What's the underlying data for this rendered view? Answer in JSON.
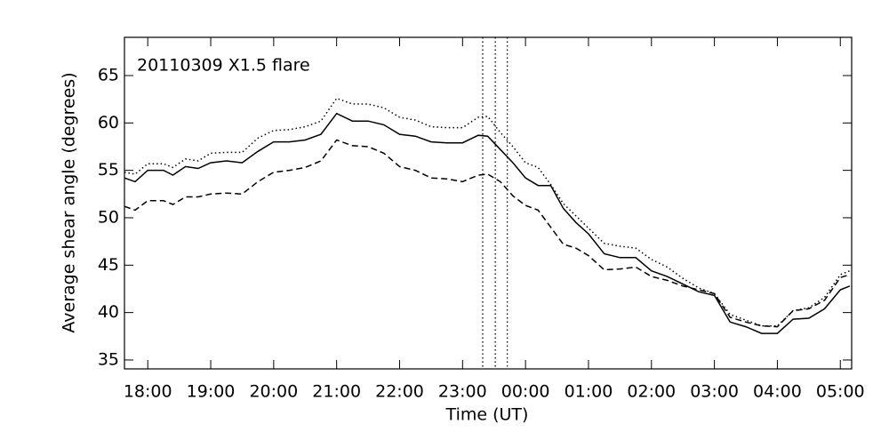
{
  "chart_data": {
    "type": "line",
    "annotation": "20110309  X1.5 flare",
    "x_label": "Time (UT)",
    "y_label": "Average shear angle (degrees)",
    "x": [
      17.63,
      17.8,
      18.0,
      18.25,
      18.4,
      18.6,
      18.8,
      19.0,
      19.25,
      19.5,
      19.75,
      20.0,
      20.25,
      20.5,
      20.75,
      21.0,
      21.25,
      21.5,
      21.75,
      22.0,
      22.25,
      22.5,
      22.75,
      23.0,
      23.25,
      23.4,
      23.6,
      23.8,
      24.0,
      24.2,
      24.4,
      24.6,
      24.8,
      25.0,
      25.25,
      25.5,
      25.75,
      26.0,
      26.25,
      26.5,
      26.75,
      27.0,
      27.25,
      27.5,
      27.75,
      28.0,
      28.25,
      28.5,
      28.75,
      29.0,
      29.15
    ],
    "series": [
      {
        "color": "#000000",
        "dash": "solid",
        "values": [
          54.2,
          53.8,
          55.0,
          55.0,
          54.5,
          55.4,
          55.2,
          55.8,
          56.0,
          55.8,
          57.0,
          58.0,
          58.0,
          58.2,
          58.8,
          61.0,
          60.2,
          60.2,
          59.8,
          58.8,
          58.6,
          58.0,
          57.9,
          57.9,
          58.7,
          58.6,
          57.2,
          55.8,
          54.2,
          53.4,
          53.4,
          51.0,
          49.5,
          48.3,
          46.2,
          45.8,
          45.8,
          44.4,
          43.8,
          43.0,
          42.2,
          41.8,
          39.0,
          38.5,
          37.8,
          37.8,
          39.3,
          39.4,
          40.4,
          42.4,
          42.8
        ]
      },
      {
        "color": "#000000",
        "dash": "dotted",
        "values": [
          54.8,
          54.6,
          55.7,
          55.7,
          55.3,
          56.2,
          56.0,
          56.8,
          56.9,
          56.9,
          58.4,
          59.2,
          59.3,
          59.6,
          60.2,
          62.6,
          62.0,
          62.0,
          61.6,
          60.6,
          60.3,
          59.6,
          59.5,
          59.5,
          60.6,
          60.7,
          59.0,
          57.5,
          55.8,
          55.3,
          53.5,
          51.5,
          50.2,
          48.9,
          47.3,
          47.0,
          46.8,
          45.6,
          44.8,
          43.6,
          42.6,
          42.0,
          39.8,
          39.2,
          38.6,
          38.6,
          40.2,
          40.5,
          41.6,
          44.0,
          44.4
        ]
      },
      {
        "color": "#000000",
        "dash": "dashed",
        "values": [
          51.2,
          50.8,
          51.8,
          51.8,
          51.4,
          52.2,
          52.2,
          52.5,
          52.6,
          52.5,
          53.8,
          54.8,
          55.0,
          55.3,
          56.0,
          58.2,
          57.6,
          57.5,
          56.8,
          55.4,
          55.0,
          54.2,
          54.1,
          53.8,
          54.5,
          54.6,
          53.8,
          52.3,
          51.3,
          50.8,
          49.0,
          47.2,
          46.8,
          46.0,
          44.5,
          44.6,
          44.8,
          43.8,
          43.4,
          42.8,
          42.4,
          42.0,
          39.5,
          39.0,
          38.6,
          38.5,
          40.2,
          40.4,
          41.3,
          43.7,
          44.0
        ]
      }
    ],
    "vlines": [
      23.32,
      23.52,
      23.71
    ],
    "xlim": [
      17.63,
      29.18
    ],
    "xticks": [
      {
        "value": 18,
        "label": "18:00"
      },
      {
        "value": 19,
        "label": "19:00"
      },
      {
        "value": 20,
        "label": "20:00"
      },
      {
        "value": 21,
        "label": "21:00"
      },
      {
        "value": 22,
        "label": "22:00"
      },
      {
        "value": 23,
        "label": "23:00"
      },
      {
        "value": 24,
        "label": "00:00"
      },
      {
        "value": 25,
        "label": "01:00"
      },
      {
        "value": 26,
        "label": "02:00"
      },
      {
        "value": 27,
        "label": "03:00"
      },
      {
        "value": 28,
        "label": "04:00"
      },
      {
        "value": 29,
        "label": "05:00"
      }
    ],
    "ylim": [
      34.06,
      69.03
    ],
    "yticks": [
      35,
      40,
      45,
      50,
      55,
      60,
      65
    ]
  }
}
